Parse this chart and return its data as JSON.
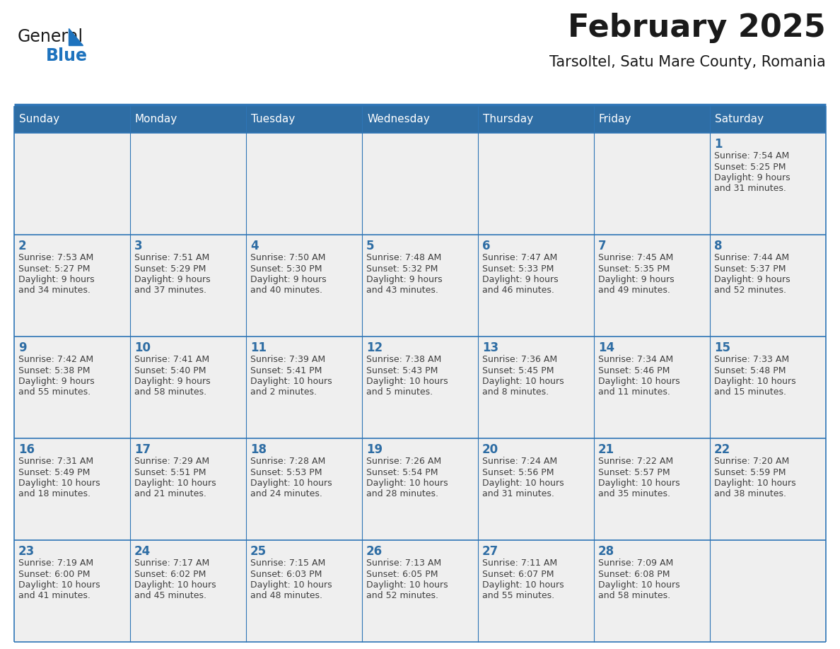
{
  "title": "February 2025",
  "subtitle": "Tarsoltel, Satu Mare County, Romania",
  "days_of_week": [
    "Sunday",
    "Monday",
    "Tuesday",
    "Wednesday",
    "Thursday",
    "Friday",
    "Saturday"
  ],
  "header_bg": "#2e6da4",
  "header_text": "#ffffff",
  "cell_bg": "#efefef",
  "border_color": "#2e75b6",
  "day_number_color": "#2e6da4",
  "info_text_color": "#404040",
  "title_color": "#1a1a1a",
  "subtitle_color": "#1a1a1a",
  "logo_general_color": "#1a1a1a",
  "logo_blue_color": "#1e73be",
  "weeks": [
    [
      {
        "day": null,
        "info": ""
      },
      {
        "day": null,
        "info": ""
      },
      {
        "day": null,
        "info": ""
      },
      {
        "day": null,
        "info": ""
      },
      {
        "day": null,
        "info": ""
      },
      {
        "day": null,
        "info": ""
      },
      {
        "day": 1,
        "info": "Sunrise: 7:54 AM\nSunset: 5:25 PM\nDaylight: 9 hours\nand 31 minutes."
      }
    ],
    [
      {
        "day": 2,
        "info": "Sunrise: 7:53 AM\nSunset: 5:27 PM\nDaylight: 9 hours\nand 34 minutes."
      },
      {
        "day": 3,
        "info": "Sunrise: 7:51 AM\nSunset: 5:29 PM\nDaylight: 9 hours\nand 37 minutes."
      },
      {
        "day": 4,
        "info": "Sunrise: 7:50 AM\nSunset: 5:30 PM\nDaylight: 9 hours\nand 40 minutes."
      },
      {
        "day": 5,
        "info": "Sunrise: 7:48 AM\nSunset: 5:32 PM\nDaylight: 9 hours\nand 43 minutes."
      },
      {
        "day": 6,
        "info": "Sunrise: 7:47 AM\nSunset: 5:33 PM\nDaylight: 9 hours\nand 46 minutes."
      },
      {
        "day": 7,
        "info": "Sunrise: 7:45 AM\nSunset: 5:35 PM\nDaylight: 9 hours\nand 49 minutes."
      },
      {
        "day": 8,
        "info": "Sunrise: 7:44 AM\nSunset: 5:37 PM\nDaylight: 9 hours\nand 52 minutes."
      }
    ],
    [
      {
        "day": 9,
        "info": "Sunrise: 7:42 AM\nSunset: 5:38 PM\nDaylight: 9 hours\nand 55 minutes."
      },
      {
        "day": 10,
        "info": "Sunrise: 7:41 AM\nSunset: 5:40 PM\nDaylight: 9 hours\nand 58 minutes."
      },
      {
        "day": 11,
        "info": "Sunrise: 7:39 AM\nSunset: 5:41 PM\nDaylight: 10 hours\nand 2 minutes."
      },
      {
        "day": 12,
        "info": "Sunrise: 7:38 AM\nSunset: 5:43 PM\nDaylight: 10 hours\nand 5 minutes."
      },
      {
        "day": 13,
        "info": "Sunrise: 7:36 AM\nSunset: 5:45 PM\nDaylight: 10 hours\nand 8 minutes."
      },
      {
        "day": 14,
        "info": "Sunrise: 7:34 AM\nSunset: 5:46 PM\nDaylight: 10 hours\nand 11 minutes."
      },
      {
        "day": 15,
        "info": "Sunrise: 7:33 AM\nSunset: 5:48 PM\nDaylight: 10 hours\nand 15 minutes."
      }
    ],
    [
      {
        "day": 16,
        "info": "Sunrise: 7:31 AM\nSunset: 5:49 PM\nDaylight: 10 hours\nand 18 minutes."
      },
      {
        "day": 17,
        "info": "Sunrise: 7:29 AM\nSunset: 5:51 PM\nDaylight: 10 hours\nand 21 minutes."
      },
      {
        "day": 18,
        "info": "Sunrise: 7:28 AM\nSunset: 5:53 PM\nDaylight: 10 hours\nand 24 minutes."
      },
      {
        "day": 19,
        "info": "Sunrise: 7:26 AM\nSunset: 5:54 PM\nDaylight: 10 hours\nand 28 minutes."
      },
      {
        "day": 20,
        "info": "Sunrise: 7:24 AM\nSunset: 5:56 PM\nDaylight: 10 hours\nand 31 minutes."
      },
      {
        "day": 21,
        "info": "Sunrise: 7:22 AM\nSunset: 5:57 PM\nDaylight: 10 hours\nand 35 minutes."
      },
      {
        "day": 22,
        "info": "Sunrise: 7:20 AM\nSunset: 5:59 PM\nDaylight: 10 hours\nand 38 minutes."
      }
    ],
    [
      {
        "day": 23,
        "info": "Sunrise: 7:19 AM\nSunset: 6:00 PM\nDaylight: 10 hours\nand 41 minutes."
      },
      {
        "day": 24,
        "info": "Sunrise: 7:17 AM\nSunset: 6:02 PM\nDaylight: 10 hours\nand 45 minutes."
      },
      {
        "day": 25,
        "info": "Sunrise: 7:15 AM\nSunset: 6:03 PM\nDaylight: 10 hours\nand 48 minutes."
      },
      {
        "day": 26,
        "info": "Sunrise: 7:13 AM\nSunset: 6:05 PM\nDaylight: 10 hours\nand 52 minutes."
      },
      {
        "day": 27,
        "info": "Sunrise: 7:11 AM\nSunset: 6:07 PM\nDaylight: 10 hours\nand 55 minutes."
      },
      {
        "day": 28,
        "info": "Sunrise: 7:09 AM\nSunset: 6:08 PM\nDaylight: 10 hours\nand 58 minutes."
      },
      {
        "day": null,
        "info": ""
      }
    ]
  ]
}
